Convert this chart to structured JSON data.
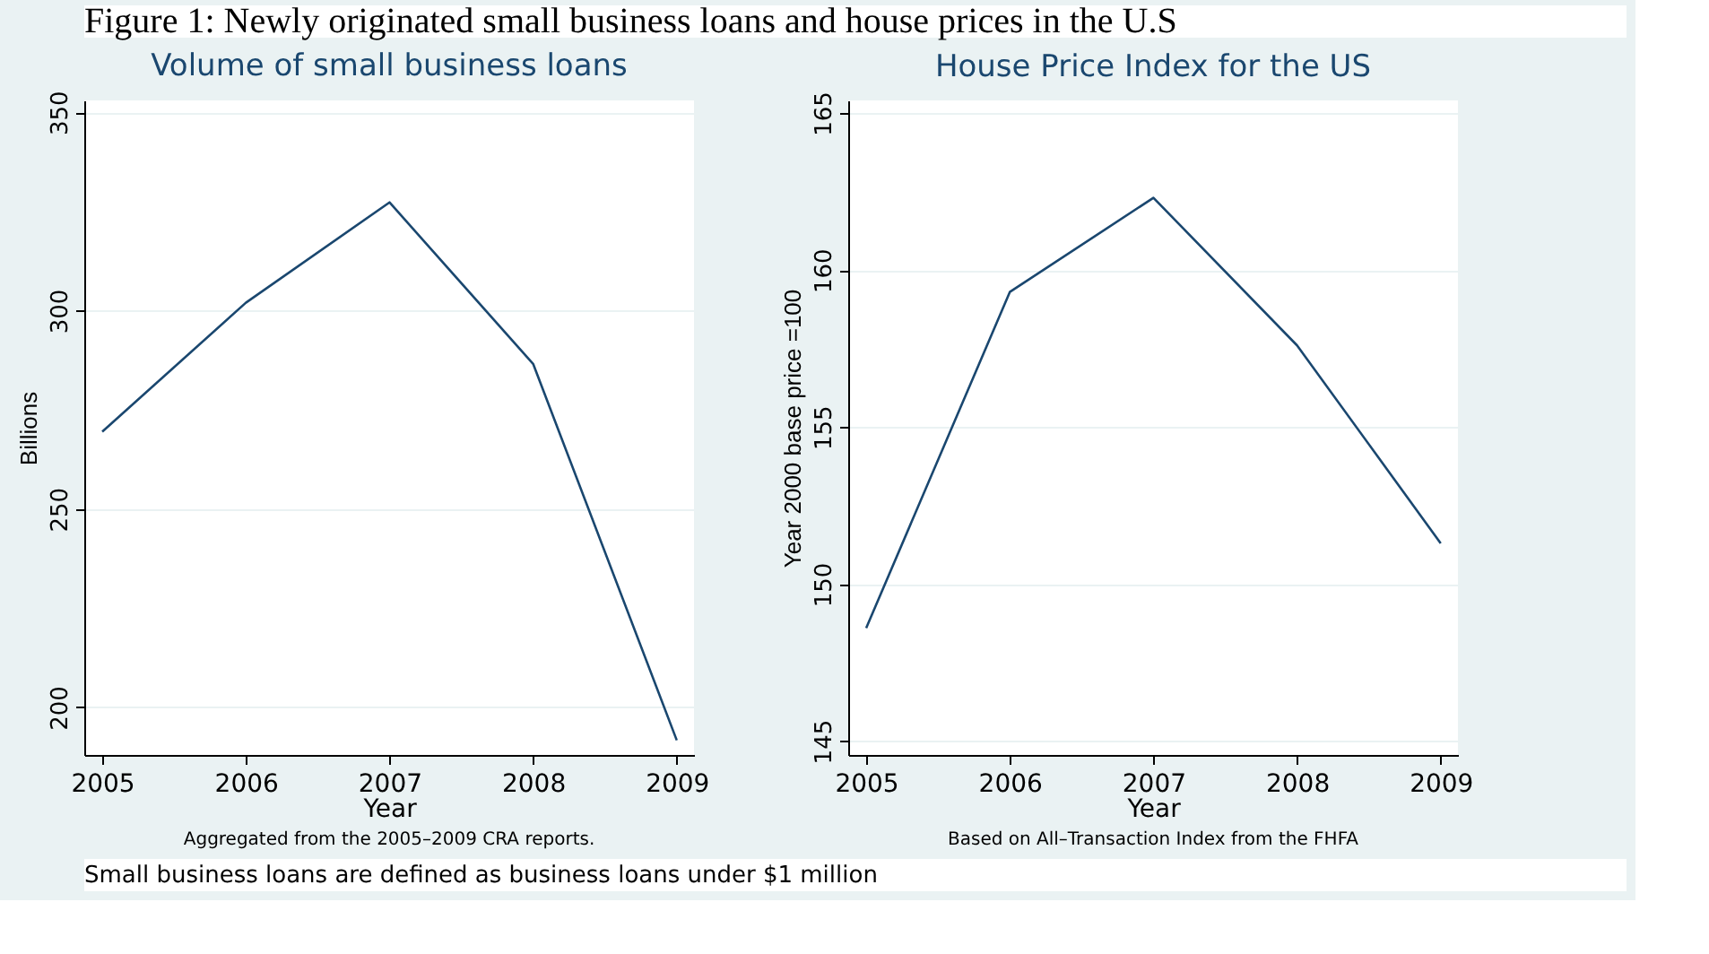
{
  "chart_data": [
    {
      "type": "line",
      "title": "Volume of small business loans",
      "xlabel": "Year",
      "ylabel": "Billions",
      "x": [
        2005,
        2006,
        2007,
        2008,
        2009
      ],
      "series": [
        {
          "color": "#1a476f",
          "values": [
            269.5,
            302,
            327.3,
            286.6,
            191.7
          ]
        }
      ],
      "xlim": [
        2004.875,
        2009.12
      ],
      "xticks": [
        2005,
        2006,
        2007,
        2008,
        2009
      ],
      "ylim": [
        188,
        353
      ],
      "yticks": [
        200,
        250,
        300,
        350
      ],
      "grid": "y",
      "marker": "none",
      "line_style": "solid",
      "annotations": [
        "Figure 1: Newly originated small business loans and house prices in the U.S",
        "Aggregated from the 2005–2009 CRA reports.",
        "Small business loans are defined as business loans under $1 million"
      ]
    },
    {
      "type": "line",
      "title": "House Price Index for the US",
      "xlabel": "Year",
      "ylabel": "Year 2000 base price =100",
      "x": [
        2005,
        2006,
        2007,
        2008,
        2009
      ],
      "series": [
        {
          "color": "#1a476f",
          "values": [
            148.6,
            159.3,
            162.3,
            157.6,
            151.3
          ]
        }
      ],
      "xlim": [
        2004.875,
        2009.12
      ],
      "xticks": [
        2005,
        2006,
        2007,
        2008,
        2009
      ],
      "ylim": [
        144.56,
        165.4
      ],
      "yticks": [
        145,
        150,
        155,
        160,
        165
      ],
      "grid": "y",
      "marker": "none",
      "line_style": "solid",
      "annotations": [
        "Based on All–Transaction Index from the FHFA"
      ]
    }
  ]
}
